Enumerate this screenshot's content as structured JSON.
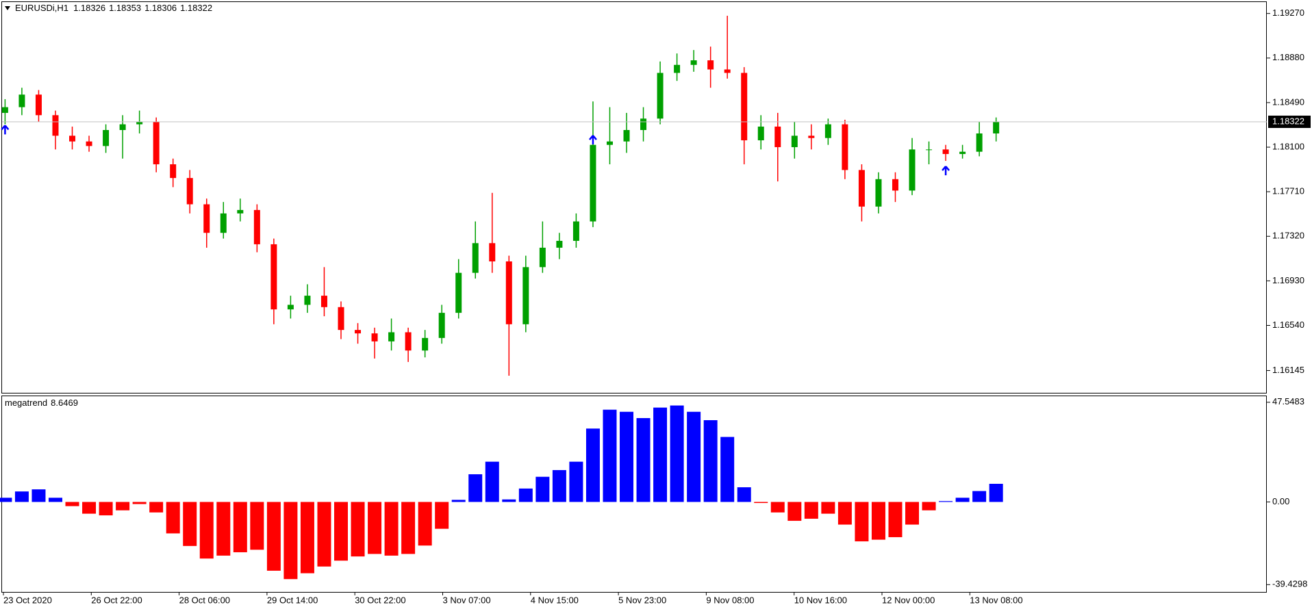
{
  "chart_data": [
    {
      "type": "candlestick",
      "title": "EURUSDi,H1",
      "header_values": [
        1.18326,
        1.18353,
        1.18306,
        1.18322
      ],
      "candles": {
        "open": [
          1.184,
          1.1845,
          1.1856,
          1.1838,
          1.182,
          1.1815,
          1.1811,
          1.1825,
          1.183,
          1.1832,
          1.1795,
          1.1783,
          1.176,
          1.1735,
          1.1752,
          1.1755,
          1.1725,
          1.1668,
          1.1672,
          1.168,
          1.167,
          1.165,
          1.1647,
          1.164,
          1.1648,
          1.1632,
          1.1643,
          1.1665,
          1.17,
          1.1726,
          1.171,
          1.1655,
          1.1705,
          1.1722,
          1.1728,
          1.1745,
          1.1812,
          1.1815,
          1.1825,
          1.1835,
          1.1875,
          1.1882,
          1.1886,
          1.1878,
          1.1875,
          1.1816,
          1.1828,
          1.181,
          1.182,
          1.1818,
          1.183,
          1.179,
          1.1758,
          1.1782,
          1.1772,
          1.1808,
          1.1808,
          1.1804,
          1.1806,
          1.1822
        ],
        "high": [
          1.1852,
          1.1862,
          1.186,
          1.1842,
          1.1828,
          1.182,
          1.183,
          1.1838,
          1.1842,
          1.1836,
          1.18,
          1.179,
          1.1765,
          1.1762,
          1.1765,
          1.176,
          1.173,
          1.168,
          1.169,
          1.1705,
          1.1675,
          1.1656,
          1.1652,
          1.166,
          1.1652,
          1.165,
          1.1672,
          1.1712,
          1.1745,
          1.177,
          1.1715,
          1.1715,
          1.1745,
          1.1735,
          1.1752,
          1.185,
          1.1845,
          1.184,
          1.1845,
          1.1885,
          1.1892,
          1.1895,
          1.1898,
          1.1925,
          1.188,
          1.1838,
          1.184,
          1.1832,
          1.183,
          1.1835,
          1.1834,
          1.1795,
          1.1788,
          1.1788,
          1.1818,
          1.1815,
          1.1812,
          1.1812,
          1.1832,
          1.1836
        ],
        "low": [
          1.183,
          1.1838,
          1.1832,
          1.1808,
          1.1808,
          1.1806,
          1.1805,
          1.18,
          1.1822,
          1.1788,
          1.1775,
          1.1752,
          1.1722,
          1.173,
          1.1745,
          1.1718,
          1.1655,
          1.166,
          1.1665,
          1.1662,
          1.1642,
          1.1638,
          1.1625,
          1.1632,
          1.1622,
          1.1626,
          1.1638,
          1.166,
          1.1695,
          1.17,
          1.161,
          1.1648,
          1.17,
          1.1712,
          1.1722,
          1.174,
          1.1795,
          1.1805,
          1.1815,
          1.183,
          1.1868,
          1.1876,
          1.1862,
          1.187,
          1.1795,
          1.1808,
          1.178,
          1.18,
          1.1808,
          1.1812,
          1.1782,
          1.1745,
          1.1752,
          1.1762,
          1.1768,
          1.1795,
          1.1798,
          1.18,
          1.1802,
          1.1815
        ],
        "close": [
          1.1845,
          1.1856,
          1.1838,
          1.182,
          1.1815,
          1.1811,
          1.1825,
          1.183,
          1.1832,
          1.1795,
          1.1783,
          1.176,
          1.1735,
          1.1752,
          1.1755,
          1.1725,
          1.1668,
          1.1672,
          1.168,
          1.167,
          1.165,
          1.1647,
          1.164,
          1.1648,
          1.1632,
          1.1643,
          1.1665,
          1.17,
          1.1726,
          1.171,
          1.1655,
          1.1705,
          1.1722,
          1.1728,
          1.1745,
          1.1812,
          1.1815,
          1.1825,
          1.1835,
          1.1875,
          1.1882,
          1.1886,
          1.1878,
          1.1875,
          1.1816,
          1.1828,
          1.181,
          1.182,
          1.1818,
          1.183,
          1.179,
          1.1758,
          1.1782,
          1.1772,
          1.1808,
          1.1808,
          1.1804,
          1.1806,
          1.1822,
          1.18322
        ]
      },
      "up_color": "#00a000",
      "down_color": "#ff0000",
      "ylim": [
        1.1595,
        1.1937
      ],
      "yticks": [
        {
          "value": 1.1927,
          "label": "1.19270"
        },
        {
          "value": 1.1888,
          "label": "1.18880"
        },
        {
          "value": 1.1849,
          "label": "1.18490"
        },
        {
          "value": 1.181,
          "label": "1.18100"
        },
        {
          "value": 1.1771,
          "label": "1.17710"
        },
        {
          "value": 1.1732,
          "label": "1.17320"
        },
        {
          "value": 1.1693,
          "label": "1.16930"
        },
        {
          "value": 1.1654,
          "label": "1.16540"
        },
        {
          "value": 1.16145,
          "label": "1.16145"
        }
      ],
      "grid": false,
      "current_price": 1.18322,
      "buy_arrows": {
        "index": [
          0,
          35,
          56
        ],
        "price": [
          1.18248,
          1.1816,
          1.1789
        ],
        "color": "#0000ff"
      },
      "x_labels": [
        "23 Oct 2020",
        "26 Oct 22:00",
        "28 Oct 06:00",
        "29 Oct 14:00",
        "30 Oct 22:00",
        "3 Nov 07:00",
        "4 Nov 15:00",
        "5 Nov 23:00",
        "9 Nov 08:00",
        "10 Nov 16:00",
        "12 Nov 00:00",
        "13 Nov 08:00"
      ]
    },
    {
      "type": "bar",
      "title": "megatrend",
      "title_value": 8.6469,
      "values": [
        2,
        5,
        6,
        2,
        -2,
        -5.6,
        -6.4,
        -4,
        -1,
        -5,
        -15,
        -21,
        -27,
        -25.6,
        -24,
        -22.8,
        -32.8,
        -36.8,
        -34,
        -30.8,
        -28,
        -26,
        -24.8,
        -25.6,
        -24.8,
        -20.8,
        -12.8,
        1,
        13.2,
        19.2,
        1.2,
        6.4,
        12,
        15.2,
        19.2,
        35,
        44,
        43,
        40,
        45,
        46,
        43,
        39,
        31,
        7,
        -0.5,
        -5,
        -9,
        -8,
        -5.6,
        -10.8,
        -18.8,
        -18,
        -16.8,
        -10.8,
        -4,
        0.4,
        2,
        5.2,
        8.6469
      ],
      "positive_color": "#0000ff",
      "negative_color": "#ff0000",
      "ylim": [
        -42.6,
        50.75
      ],
      "yticks": [
        47.5483,
        {
          "value": 0,
          "label": "0.00"
        },
        -39.4298
      ],
      "grid": false
    }
  ]
}
